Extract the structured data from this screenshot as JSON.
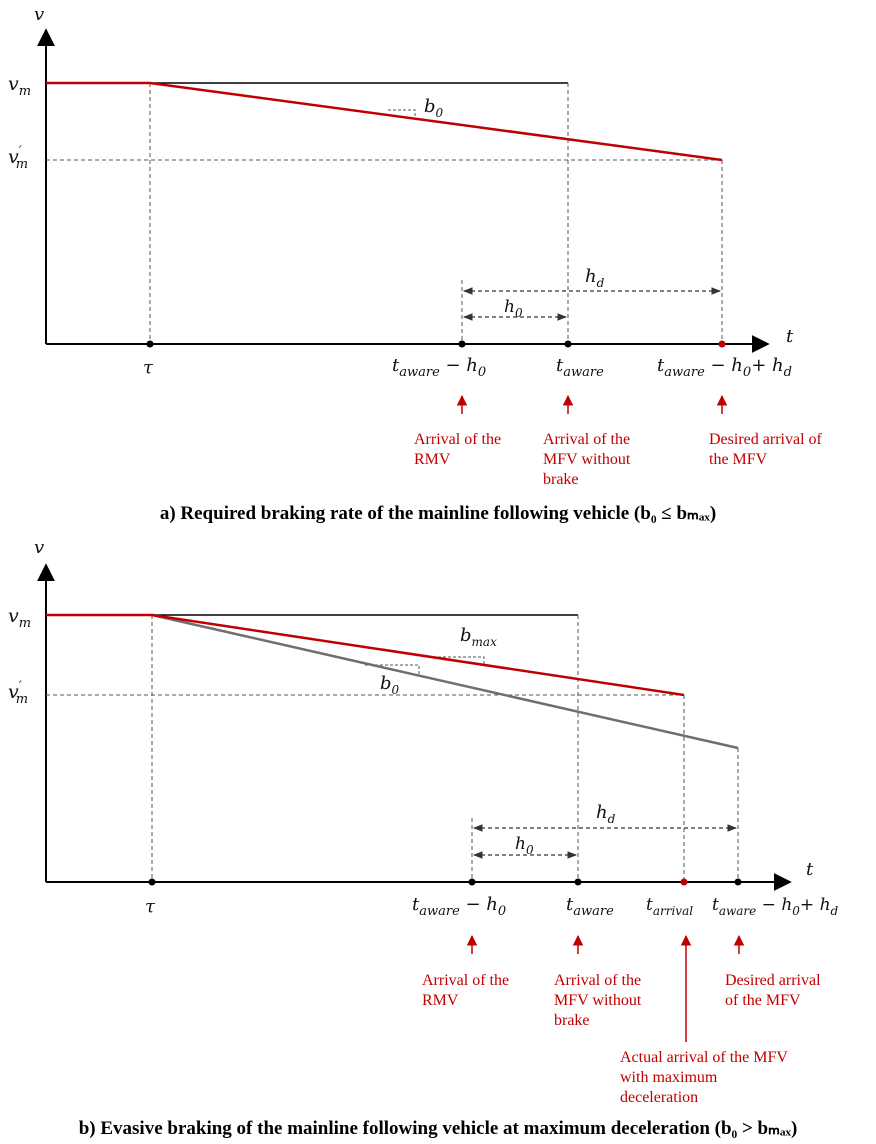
{
  "colors": {
    "red": "#c00000",
    "gray": "#6e6e6e",
    "axis": "#000000",
    "dashed": "#555555"
  },
  "panel_a": {
    "axis_y": "v",
    "axis_x": "t",
    "vm": "v",
    "vm_sub": "m",
    "vm_prime": "v",
    "vm_prime_sup": "′",
    "b0": "b",
    "b0_sub": "0",
    "hd": "h",
    "hd_sub": "d",
    "h0": "h",
    "h0_sub": "0",
    "tau": "τ",
    "tick1_t": "t",
    "tick1_sub": "aware",
    "tick1_rest": " − h",
    "tick1_rest_sub": "0",
    "tick2_t": "t",
    "tick2_sub": "aware",
    "tick3_t": "t",
    "tick3_sub": "aware",
    "tick3_mid": " − h",
    "tick3_mid_sub": "0",
    "tick3_end": "+ h",
    "tick3_end_sub": "d",
    "label_rmv": [
      "Arrival of the",
      "RMV"
    ],
    "label_mfv": [
      "Arrival of the",
      "MFV without",
      "brake"
    ],
    "label_desired": [
      "Desired arrival of",
      "the MFV"
    ],
    "caption": "a) Required braking rate of the mainline following vehicle (b₀ ≤ bₘₐₓ)"
  },
  "panel_b": {
    "axis_y": "v",
    "axis_x": "t",
    "vm": "v",
    "vm_sub": "m",
    "vm_prime": "v",
    "vm_prime_sup": "′",
    "bmax": "b",
    "bmax_sub": "max",
    "b0": "b",
    "b0_sub": "0",
    "hd": "h",
    "hd_sub": "d",
    "h0": "h",
    "h0_sub": "0",
    "tau": "τ",
    "tick1_t": "t",
    "tick1_sub": "aware",
    "tick1_rest": " − h",
    "tick1_rest_sub": "0",
    "tick2_t": "t",
    "tick2_sub": "aware",
    "tick_arr_t": "t",
    "tick_arr_sub": "arrival",
    "tick3_t": "t",
    "tick3_sub": "aware",
    "tick3_mid": " − h",
    "tick3_mid_sub": "0",
    "tick3_end": "+ h",
    "tick3_end_sub": "d",
    "label_rmv": [
      "Arrival of the",
      "RMV"
    ],
    "label_mfv": [
      "Arrival of the",
      "MFV without",
      "brake"
    ],
    "label_desired": [
      "Desired arrival",
      "of the MFV"
    ],
    "label_actual": [
      "Actual arrival of the MFV",
      "with maximum",
      "deceleration"
    ],
    "caption": "b) Evasive braking of the mainline following vehicle at maximum deceleration (b₀ > bₘₐₓ)"
  }
}
